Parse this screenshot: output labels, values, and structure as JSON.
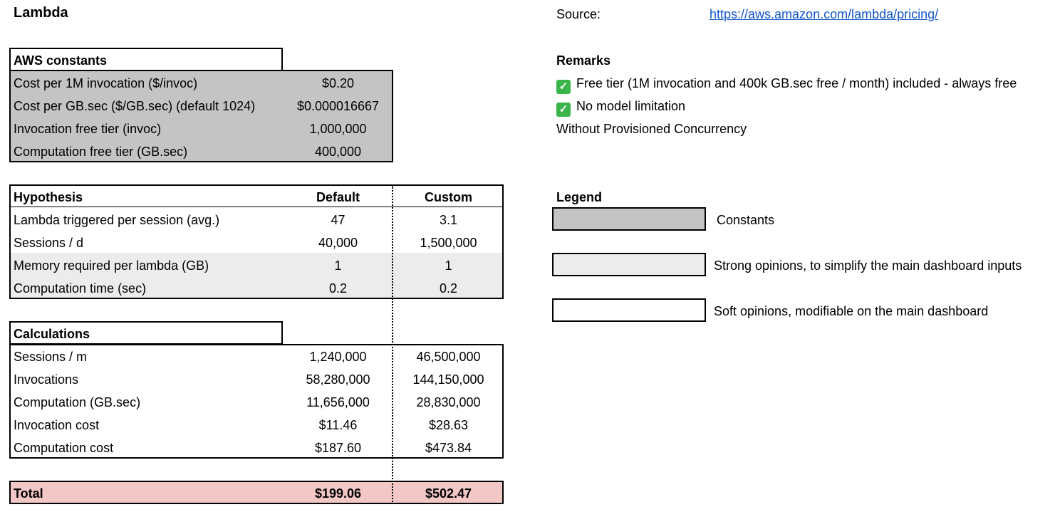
{
  "title": "Lambda",
  "source": {
    "label": "Source:",
    "url": "https://aws.amazon.com/lambda/pricing/"
  },
  "aws_constants": {
    "header": "AWS constants",
    "rows": [
      {
        "label": "Cost per 1M invocation ($/invoc)",
        "value": "$0.20"
      },
      {
        "label": "Cost per GB.sec ($/GB.sec) (default 1024)",
        "value": "$0.000016667"
      },
      {
        "label": "Invocation free tier (invoc)",
        "value": "1,000,000"
      },
      {
        "label": "Computation free tier (GB.sec)",
        "value": "400,000"
      }
    ]
  },
  "hypothesis": {
    "header": "Hypothesis",
    "col_default": "Default",
    "col_custom": "Custom",
    "rows": [
      {
        "label": "Lambda triggered per session (avg.)",
        "default": "47",
        "custom": "3.1"
      },
      {
        "label": "Sessions / d",
        "default": "40,000",
        "custom": "1,500,000"
      },
      {
        "label": "Memory required per lambda (GB)",
        "default": "1",
        "custom": "1"
      },
      {
        "label": "Computation time (sec)",
        "default": "0.2",
        "custom": "0.2"
      }
    ]
  },
  "calculations": {
    "header": "Calculations",
    "rows": [
      {
        "label": "Sessions / m",
        "default": "1,240,000",
        "custom": "46,500,000"
      },
      {
        "label": "Invocations",
        "default": "58,280,000",
        "custom": "144,150,000"
      },
      {
        "label": "Computation (GB.sec)",
        "default": "11,656,000",
        "custom": "28,830,000"
      },
      {
        "label": "Invocation cost",
        "default": "$11.46",
        "custom": "$28.63"
      },
      {
        "label": "Computation cost",
        "default": "$187.60",
        "custom": "$473.84"
      }
    ]
  },
  "total": {
    "label": "Total",
    "default": "$199.06",
    "custom": "$502.47"
  },
  "remarks": {
    "header": "Remarks",
    "items": [
      {
        "icon": "check-icon",
        "text": "Free tier (1M invocation and 400k GB.sec free / month) included - always free"
      },
      {
        "icon": "check-icon",
        "text": "No model limitation"
      },
      {
        "icon": "",
        "text": "Without Provisioned Concurrency"
      }
    ]
  },
  "legend": {
    "header": "Legend",
    "items": [
      {
        "color": "#c4c4c4",
        "text": "Constants"
      },
      {
        "color": "#ececec",
        "text": "Strong opinions, to simplify the main dashboard inputs"
      },
      {
        "color": "#ffffff",
        "text": "Soft opinions, modifiable on the main dashboard"
      }
    ]
  },
  "colors": {
    "constants": "#c4c4c4",
    "strong": "#ececec",
    "total": "#f4c7c7",
    "link": "#1155cc",
    "check": "#3bb54a"
  }
}
